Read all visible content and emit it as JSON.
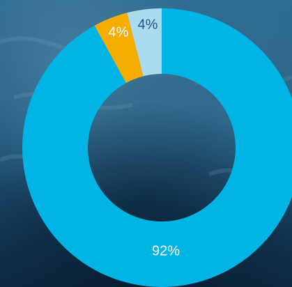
{
  "chart_data": {
    "type": "pie",
    "variant": "donut",
    "slices": [
      {
        "value": 92,
        "label": "92%",
        "color": "#00b5e6",
        "label_color": "#ffffff"
      },
      {
        "value": 4,
        "label": "4%",
        "color": "#f5ad00",
        "label_color": "#ffffff"
      },
      {
        "value": 4,
        "label": "4%",
        "color": "#a9dcee",
        "label_color": "#2c4f8a"
      }
    ],
    "start": "12 o'clock",
    "direction": "clockwise",
    "legend": "none"
  },
  "background": {
    "description_color_top": "#2d6a90",
    "description_color_bottom": "#0d2a44"
  }
}
